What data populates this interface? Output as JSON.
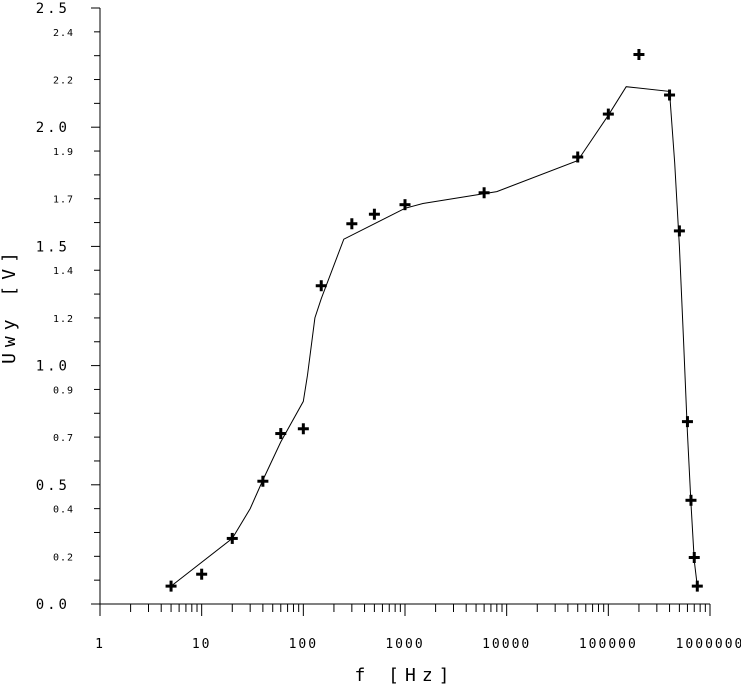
{
  "chart_data": {
    "type": "scatter",
    "title": "",
    "xlabel": "f [Hz]",
    "ylabel": "Uwy [V]",
    "x_scale": "log",
    "xlim": [
      1,
      1000000
    ],
    "ylim": [
      0.0,
      2.5
    ],
    "grid": false,
    "legend": "none",
    "colors": {
      "axis": "#000000",
      "line": "#000000",
      "marker": "#000000",
      "background": "#ffffff"
    },
    "x_tick_labels": [
      "1",
      "10",
      "100",
      "1000",
      "10000",
      "100000",
      "1000000"
    ],
    "x_tick_values": [
      1,
      10,
      100,
      1000,
      10000,
      100000,
      1000000
    ],
    "y_major_tick_labels": [
      "0.0",
      "0.5",
      "1.0",
      "1.5",
      "2.0",
      "2.5"
    ],
    "y_major_tick_values": [
      0.0,
      0.5,
      1.0,
      1.5,
      2.0,
      2.5
    ],
    "y_minor_tick_labels": [
      "0.2",
      "0.4",
      "0.7",
      "0.9",
      "1.2",
      "1.4",
      "1.7",
      "1.9",
      "2.2",
      "2.4"
    ],
    "y_minor_tick_values": [
      0.2,
      0.4,
      0.7,
      0.9,
      1.2,
      1.4,
      1.7,
      1.9,
      2.2,
      2.4
    ],
    "series": [
      {
        "marker": "plus",
        "x": [
          5,
          10,
          20,
          40,
          60,
          100,
          150,
          300,
          500,
          1000,
          6000,
          50000,
          100000,
          200000,
          400000,
          500000,
          600000,
          650000,
          700000,
          750000
        ],
        "y": [
          0.075,
          0.125,
          0.275,
          0.515,
          0.715,
          0.735,
          1.335,
          1.595,
          1.635,
          1.675,
          1.725,
          1.875,
          2.055,
          2.305,
          2.135,
          1.565,
          0.765,
          0.435,
          0.195,
          0.075
        ]
      },
      {
        "marker": "none",
        "style": "line",
        "x": [
          5,
          20,
          30,
          40,
          60,
          100,
          110,
          130,
          150,
          250,
          1000,
          1500,
          8000,
          50000,
          100000,
          150000,
          400000,
          450000,
          500000,
          550000,
          600000,
          650000,
          700000,
          750000
        ],
        "y": [
          0.075,
          0.275,
          0.4,
          0.52,
          0.68,
          0.85,
          0.96,
          1.2,
          1.28,
          1.53,
          1.66,
          1.68,
          1.73,
          1.86,
          2.05,
          2.17,
          2.15,
          1.85,
          1.5,
          1.1,
          0.72,
          0.42,
          0.18,
          0.075
        ]
      }
    ]
  }
}
